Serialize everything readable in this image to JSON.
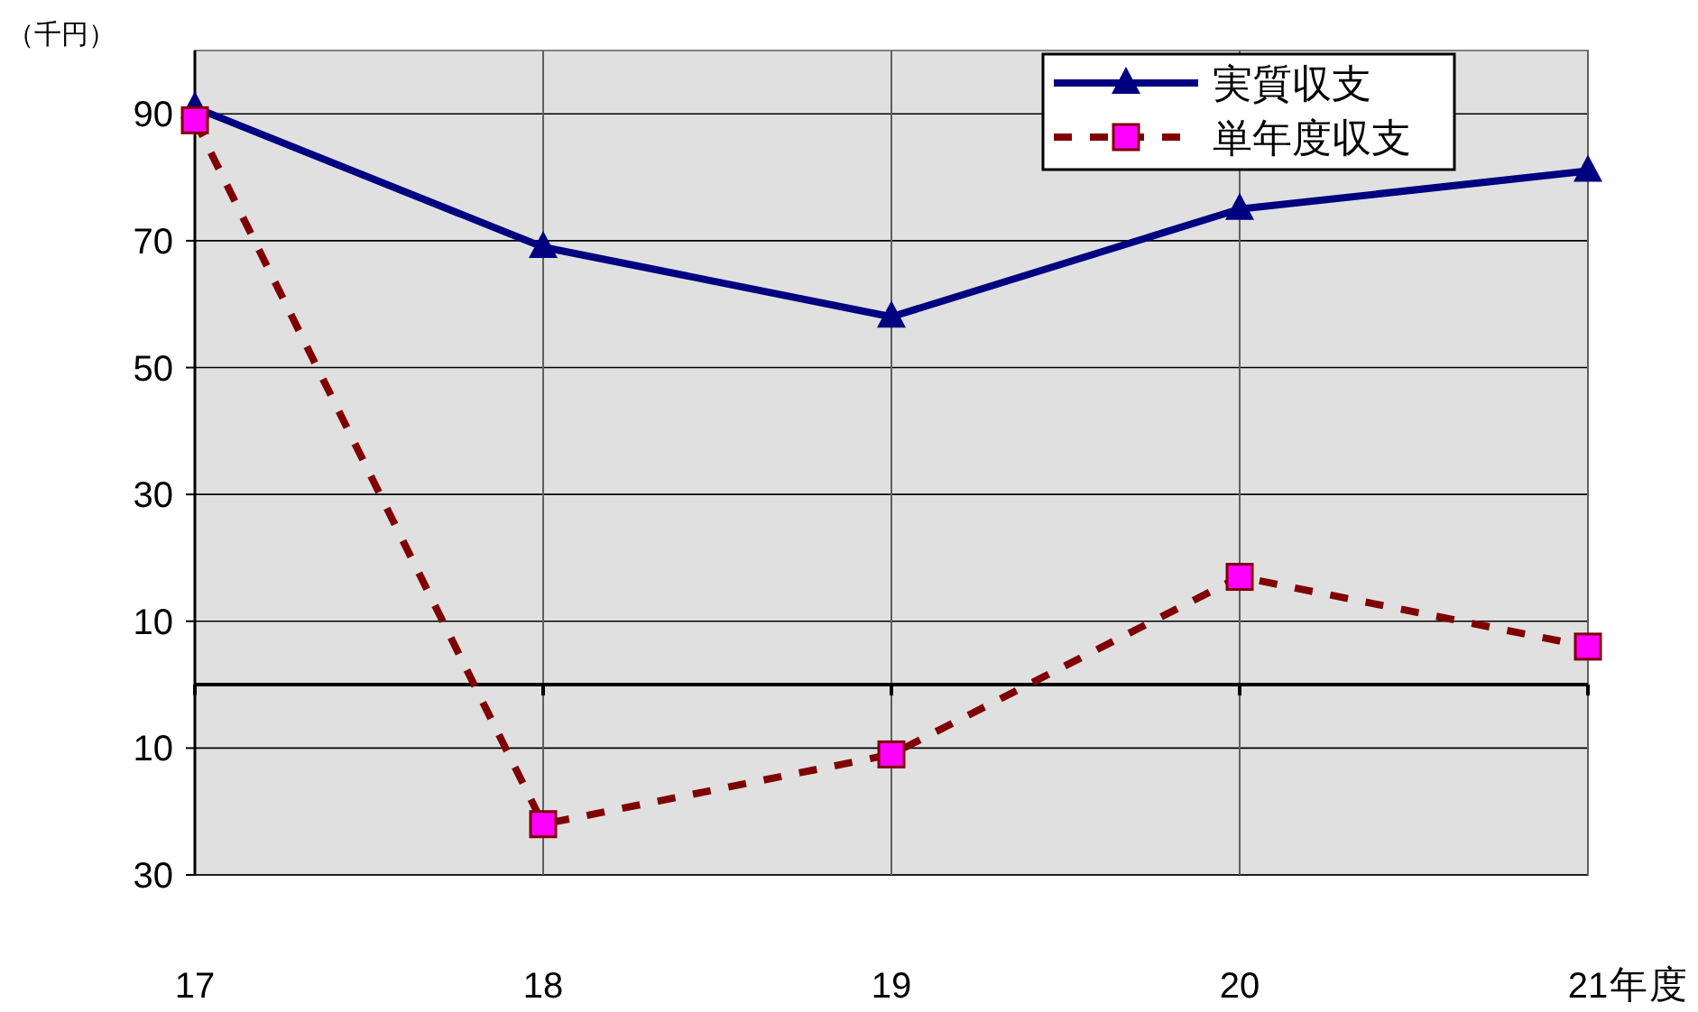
{
  "chart_data": {
    "type": "line",
    "ylabel": "（千円）",
    "xlabel": "年度",
    "categories": [
      "17",
      "18",
      "19",
      "20",
      "21"
    ],
    "series": [
      {
        "name": "実質収支",
        "color": "#000080",
        "values": [
          91,
          69,
          58,
          75,
          81
        ],
        "marker": "triangle",
        "line_style": "solid"
      },
      {
        "name": "単年度収支",
        "color": "#800000",
        "values": [
          89,
          -22,
          -11,
          17,
          6
        ],
        "marker": "square",
        "line_style": "dashed"
      }
    ],
    "ylim": [
      -30,
      100
    ],
    "yticks": [
      {
        "value": -30,
        "label": "30"
      },
      {
        "value": -10,
        "label": "10"
      },
      10,
      30,
      50,
      70,
      90
    ],
    "grid": true,
    "legend": "top right"
  }
}
